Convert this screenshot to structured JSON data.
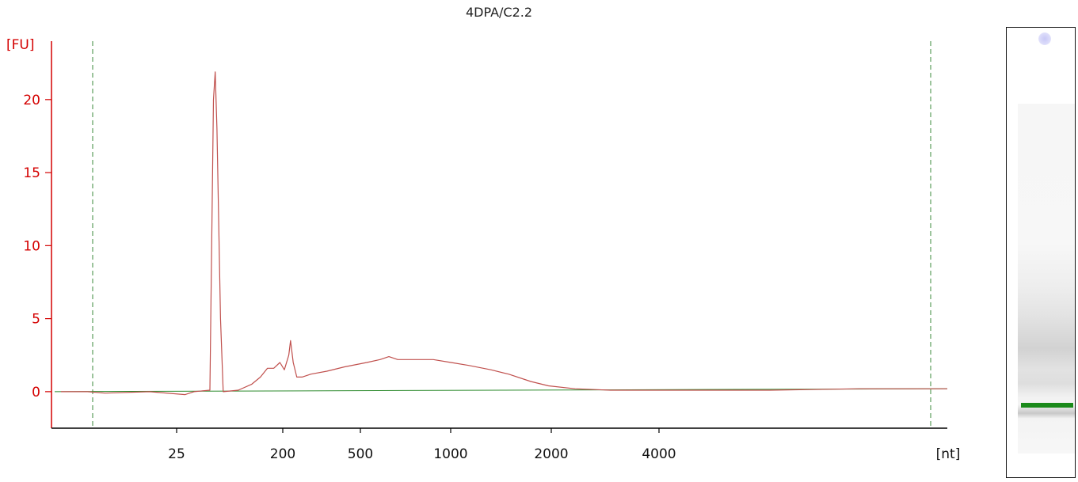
{
  "chart_data": {
    "type": "line",
    "title": "4DPA/C2.2",
    "ylabel": "[FU]",
    "xlabel": "[nt]",
    "ylim": [
      -2.5,
      24
    ],
    "yticks": [
      0,
      5,
      10,
      15,
      20
    ],
    "x_tick_labels": [
      "25",
      "200",
      "500",
      "1000",
      "2000",
      "4000"
    ],
    "grid": false,
    "colors": {
      "trace": "#c0504d",
      "baseline": "#2e8b2e",
      "axis_y": "#d40000",
      "marker_lines": "#3a8a3a"
    },
    "series": [
      {
        "values": [
          [
            0.0,
            0.0
          ],
          [
            0.3,
            0.0
          ],
          [
            0.5,
            -0.1
          ],
          [
            1.0,
            0.0
          ],
          [
            1.4,
            -0.2
          ],
          [
            1.5,
            0.0
          ],
          [
            1.68,
            0.1
          ],
          [
            1.72,
            20.0
          ],
          [
            1.74,
            21.9
          ],
          [
            1.76,
            18.0
          ],
          [
            1.8,
            5.0
          ],
          [
            1.83,
            0.0
          ],
          [
            2.0,
            0.1
          ],
          [
            2.15,
            0.5
          ],
          [
            2.25,
            1.0
          ],
          [
            2.33,
            1.6
          ],
          [
            2.4,
            1.6
          ],
          [
            2.47,
            2.0
          ],
          [
            2.52,
            1.5
          ],
          [
            2.57,
            2.5
          ],
          [
            2.59,
            3.5
          ],
          [
            2.62,
            2.0
          ],
          [
            2.66,
            1.0
          ],
          [
            2.72,
            1.0
          ],
          [
            2.82,
            1.2
          ],
          [
            3.0,
            1.4
          ],
          [
            3.2,
            1.7
          ],
          [
            3.45,
            2.0
          ],
          [
            3.6,
            2.2
          ],
          [
            3.7,
            2.4
          ],
          [
            3.8,
            2.2
          ],
          [
            4.0,
            2.2
          ],
          [
            4.2,
            2.2
          ],
          [
            4.4,
            2.0
          ],
          [
            4.6,
            1.8
          ],
          [
            4.85,
            1.5
          ],
          [
            5.05,
            1.2
          ],
          [
            5.3,
            0.7
          ],
          [
            5.5,
            0.4
          ],
          [
            5.8,
            0.2
          ],
          [
            6.2,
            0.1
          ],
          [
            7.0,
            0.1
          ],
          [
            8.0,
            0.1
          ],
          [
            9.0,
            0.2
          ],
          [
            9.5,
            0.2
          ],
          [
            10.0,
            0.2
          ]
        ]
      }
    ]
  }
}
